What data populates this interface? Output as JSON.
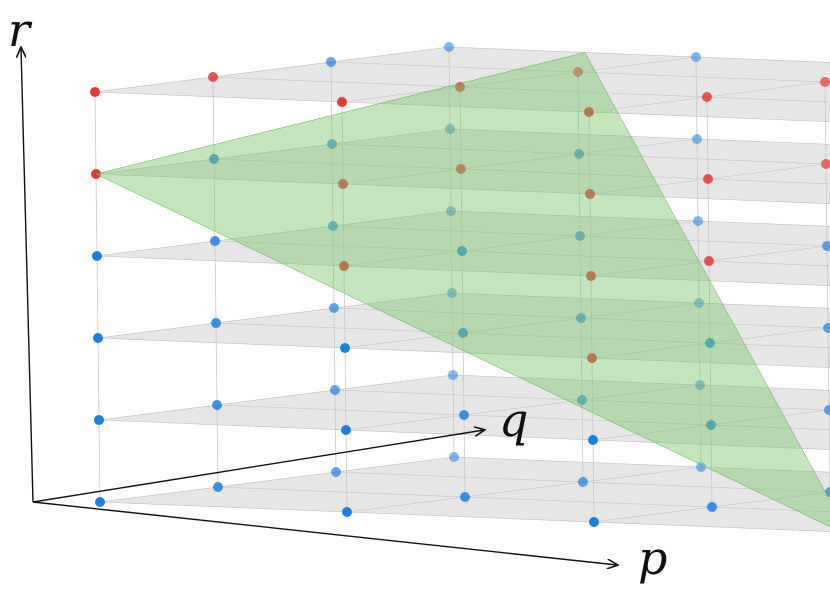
{
  "axes": {
    "x_label": "p",
    "y_label": "q",
    "z_label": "r"
  },
  "grid": {
    "p_steps": 3,
    "q_steps": 3,
    "r_levels": 6
  },
  "colors": {
    "plane_fill": "#d6d6d6",
    "plane_edge": "#bdbdbd",
    "green_plane": "#7cc76a",
    "point_below": "#1f7fdc",
    "point_above": "#e23b3b",
    "vertical_line": "#c8c8c8",
    "axis": "#111111"
  },
  "diagram_note_legend": []
}
